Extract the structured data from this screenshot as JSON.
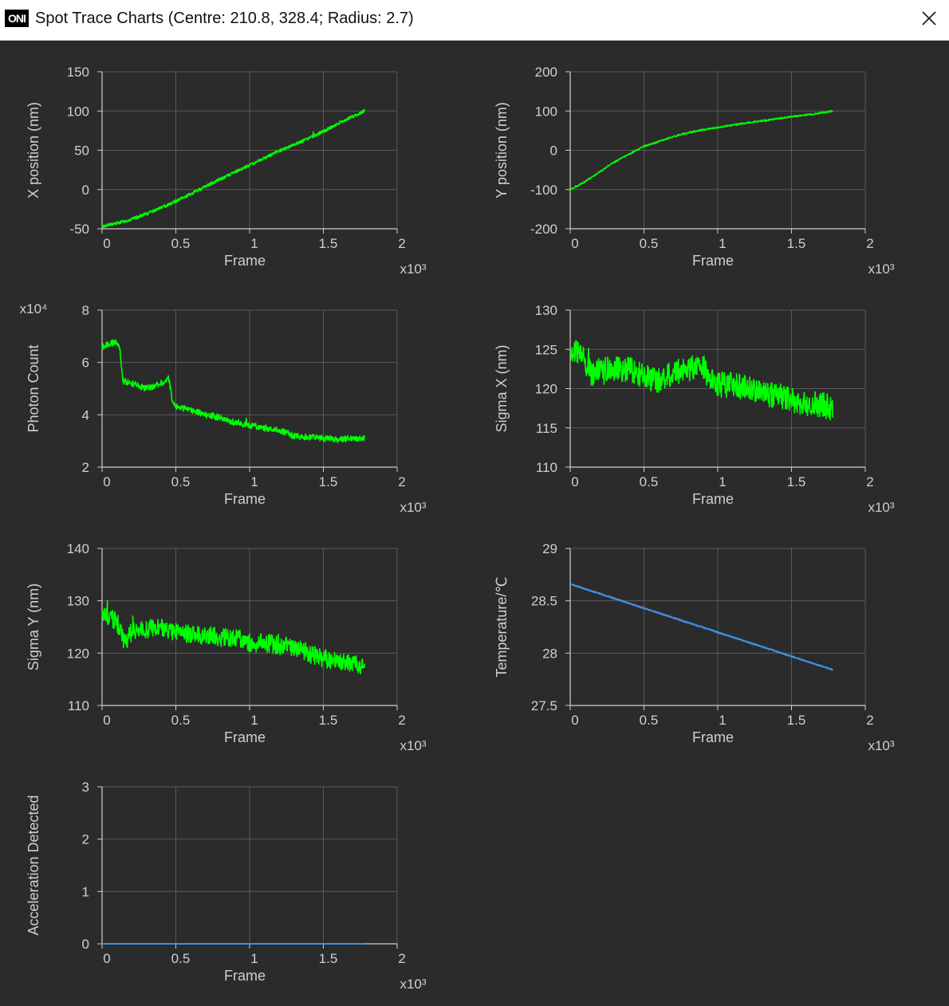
{
  "window": {
    "logo": "ONI",
    "title": "Spot Trace Charts (Centre: 210.8, 328.4; Radius: 2.7)",
    "close_icon": "close-icon"
  },
  "colors": {
    "background": "#2b2b2c",
    "grid": "#5a5a5a",
    "axis": "#cfcfcf",
    "green_series": "#00ff00",
    "blue_series": "#3f8fe0"
  },
  "chart_data": [
    {
      "id": "x-position",
      "type": "line",
      "xlabel": "Frame",
      "ylabel": "X position (nm)",
      "x_multiplier": "x10³",
      "y_multiplier": "",
      "xlim": [
        0,
        2
      ],
      "ylim": [
        -50,
        150
      ],
      "xticks": [
        "0",
        "0.5",
        "1",
        "1.5",
        "2"
      ],
      "yticks": [
        "-50",
        "0",
        "50",
        "100",
        "150"
      ],
      "color": "#00ff00",
      "noise": 2,
      "series": [
        {
          "x": [
            0,
            0.1,
            0.2,
            0.3,
            0.4,
            0.5,
            0.6,
            0.7,
            0.8,
            0.9,
            1.0,
            1.1,
            1.2,
            1.3,
            1.4,
            1.5,
            1.6,
            1.7,
            1.78
          ],
          "values": [
            -47,
            -43,
            -38,
            -31,
            -23,
            -15,
            -6,
            4,
            13,
            22,
            31,
            40,
            49,
            57,
            65,
            74,
            84,
            93,
            100
          ]
        }
      ]
    },
    {
      "id": "y-position",
      "type": "line",
      "xlabel": "Frame",
      "ylabel": "Y position (nm)",
      "x_multiplier": "x10³",
      "y_multiplier": "",
      "xlim": [
        0,
        2
      ],
      "ylim": [
        -200,
        200
      ],
      "xticks": [
        "0",
        "0.5",
        "1",
        "1.5",
        "2"
      ],
      "yticks": [
        "-200",
        "-100",
        "0",
        "100",
        "200"
      ],
      "color": "#00ff00",
      "noise": 2,
      "series": [
        {
          "x": [
            0,
            0.1,
            0.2,
            0.3,
            0.4,
            0.5,
            0.6,
            0.7,
            0.8,
            0.9,
            1.0,
            1.1,
            1.2,
            1.3,
            1.4,
            1.5,
            1.6,
            1.7,
            1.78
          ],
          "values": [
            -100,
            -80,
            -55,
            -30,
            -10,
            10,
            22,
            35,
            45,
            52,
            58,
            64,
            70,
            75,
            80,
            86,
            90,
            95,
            100
          ]
        }
      ]
    },
    {
      "id": "photon-count",
      "type": "line",
      "xlabel": "Frame",
      "ylabel": "Photon Count",
      "x_multiplier": "x10³",
      "y_multiplier": "x10⁴",
      "xlim": [
        0,
        2
      ],
      "ylim": [
        2,
        8
      ],
      "xticks": [
        "0",
        "0.5",
        "1",
        "1.5",
        "2"
      ],
      "yticks": [
        "2",
        "4",
        "6",
        "8"
      ],
      "color": "#00ff00",
      "noise": 0.12,
      "series": [
        {
          "x": [
            0,
            0.05,
            0.1,
            0.12,
            0.14,
            0.2,
            0.3,
            0.4,
            0.45,
            0.48,
            0.5,
            0.6,
            0.7,
            0.8,
            0.9,
            1.0,
            1.1,
            1.2,
            1.3,
            1.4,
            1.5,
            1.6,
            1.7,
            1.78
          ],
          "values": [
            6.6,
            6.7,
            6.8,
            6.6,
            5.3,
            5.2,
            5.0,
            5.2,
            5.4,
            4.5,
            4.3,
            4.2,
            4.0,
            3.9,
            3.7,
            3.6,
            3.5,
            3.4,
            3.2,
            3.15,
            3.1,
            3.05,
            3.1,
            3.1
          ]
        }
      ]
    },
    {
      "id": "sigma-x",
      "type": "line",
      "xlabel": "Frame",
      "ylabel": "Sigma X (nm)",
      "x_multiplier": "x10³",
      "y_multiplier": "",
      "xlim": [
        0,
        2
      ],
      "ylim": [
        110,
        130
      ],
      "xticks": [
        "0",
        "0.5",
        "1",
        "1.5",
        "2"
      ],
      "yticks": [
        "110",
        "115",
        "120",
        "125",
        "130"
      ],
      "color": "#00ff00",
      "noise": 1.6,
      "series": [
        {
          "x": [
            0,
            0.05,
            0.1,
            0.15,
            0.2,
            0.3,
            0.4,
            0.5,
            0.6,
            0.7,
            0.8,
            0.9,
            0.95,
            1.0,
            1.1,
            1.2,
            1.3,
            1.4,
            1.5,
            1.6,
            1.7,
            1.78
          ],
          "values": [
            125,
            124.5,
            123.5,
            121.5,
            122.5,
            122.5,
            122.5,
            121.5,
            121,
            122,
            122.5,
            123,
            121,
            120.5,
            120.5,
            120,
            119.5,
            119,
            118.5,
            118,
            118,
            117.5
          ]
        }
      ]
    },
    {
      "id": "sigma-y",
      "type": "line",
      "xlabel": "Frame",
      "ylabel": "Sigma Y (nm)",
      "x_multiplier": "x10³",
      "y_multiplier": "",
      "xlim": [
        0,
        2
      ],
      "ylim": [
        110,
        140
      ],
      "xticks": [
        "0",
        "0.5",
        "1",
        "1.5",
        "2"
      ],
      "yticks": [
        "110",
        "120",
        "130",
        "140"
      ],
      "color": "#00ff00",
      "noise": 1.8,
      "series": [
        {
          "x": [
            0,
            0.05,
            0.1,
            0.15,
            0.2,
            0.3,
            0.4,
            0.5,
            0.6,
            0.7,
            0.8,
            0.9,
            1.0,
            1.1,
            1.2,
            1.3,
            1.4,
            1.5,
            1.6,
            1.7,
            1.78
          ],
          "values": [
            128,
            127,
            126,
            122,
            124,
            124.5,
            125,
            124,
            123.5,
            123.5,
            123,
            123,
            122,
            122,
            121.5,
            121,
            120,
            119,
            118.5,
            118,
            117.5
          ]
        }
      ]
    },
    {
      "id": "temperature",
      "type": "line",
      "xlabel": "Frame",
      "ylabel": "Temperature/℃",
      "x_multiplier": "x10³",
      "y_multiplier": "",
      "xlim": [
        0,
        2
      ],
      "ylim": [
        27.5,
        29
      ],
      "xticks": [
        "0",
        "0.5",
        "1",
        "1.5",
        "2"
      ],
      "yticks": [
        "27.5",
        "28",
        "28.5",
        "29"
      ],
      "color": "#3f8fe0",
      "noise": 0.005,
      "series": [
        {
          "x": [
            0,
            1.78
          ],
          "values": [
            28.66,
            27.84
          ]
        }
      ]
    },
    {
      "id": "acceleration-detected",
      "type": "line",
      "xlabel": "Frame",
      "ylabel": "Acceleration Detected",
      "x_multiplier": "x10³",
      "y_multiplier": "",
      "xlim": [
        0,
        2
      ],
      "ylim": [
        0,
        3
      ],
      "xticks": [
        "0",
        "0.5",
        "1",
        "1.5",
        "2"
      ],
      "yticks": [
        "0",
        "1",
        "2",
        "3"
      ],
      "color": "#3f8fe0",
      "noise": 0,
      "series": [
        {
          "x": [
            0,
            1.78
          ],
          "values": [
            0,
            0
          ]
        }
      ]
    }
  ]
}
